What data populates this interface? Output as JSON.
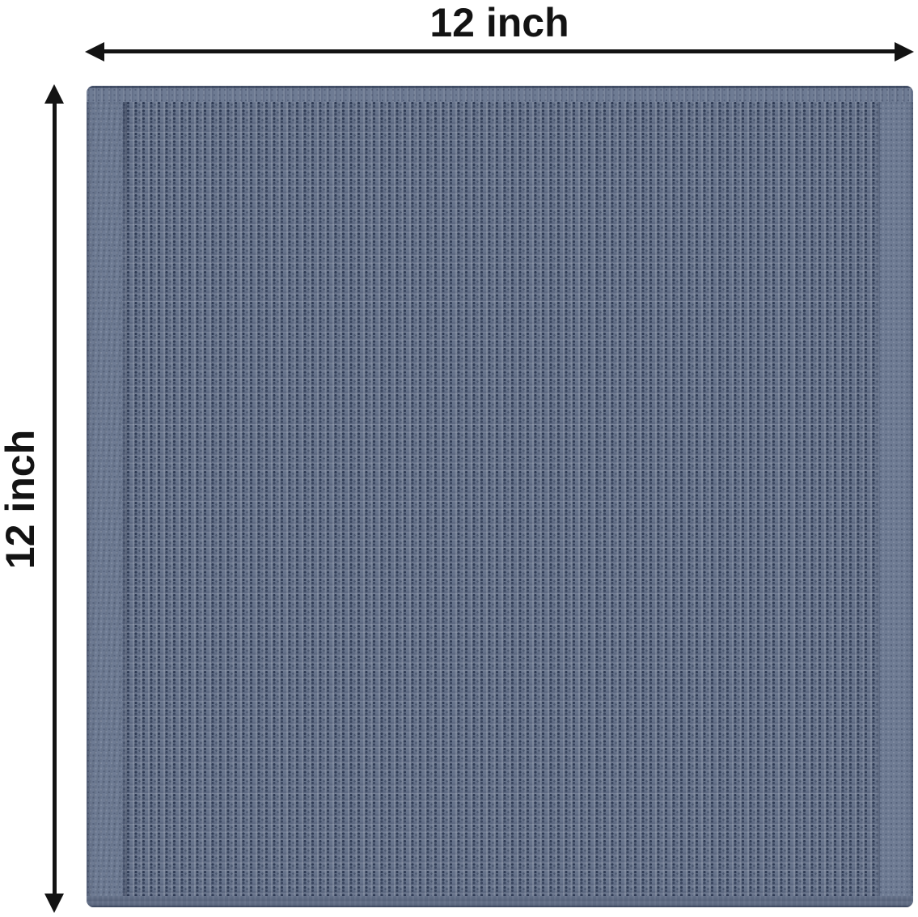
{
  "figure": {
    "description": "Product dimension photo of a square slate-blue waffle-weave towel with measurement arrows",
    "product": "waffle-weave towel"
  },
  "annotations": {
    "width": {
      "label": "12 inch"
    },
    "height": {
      "label": "12 inch"
    }
  },
  "theme": {
    "c-arrow": "#131313",
    "c-label": "#131313",
    "c-base": "#66738b",
    "c-dot-dark": "#2f3b54",
    "c-dot-mid": "#3a465f",
    "c-hem": "#6e7b93",
    "c-seam": "#4c5871"
  }
}
